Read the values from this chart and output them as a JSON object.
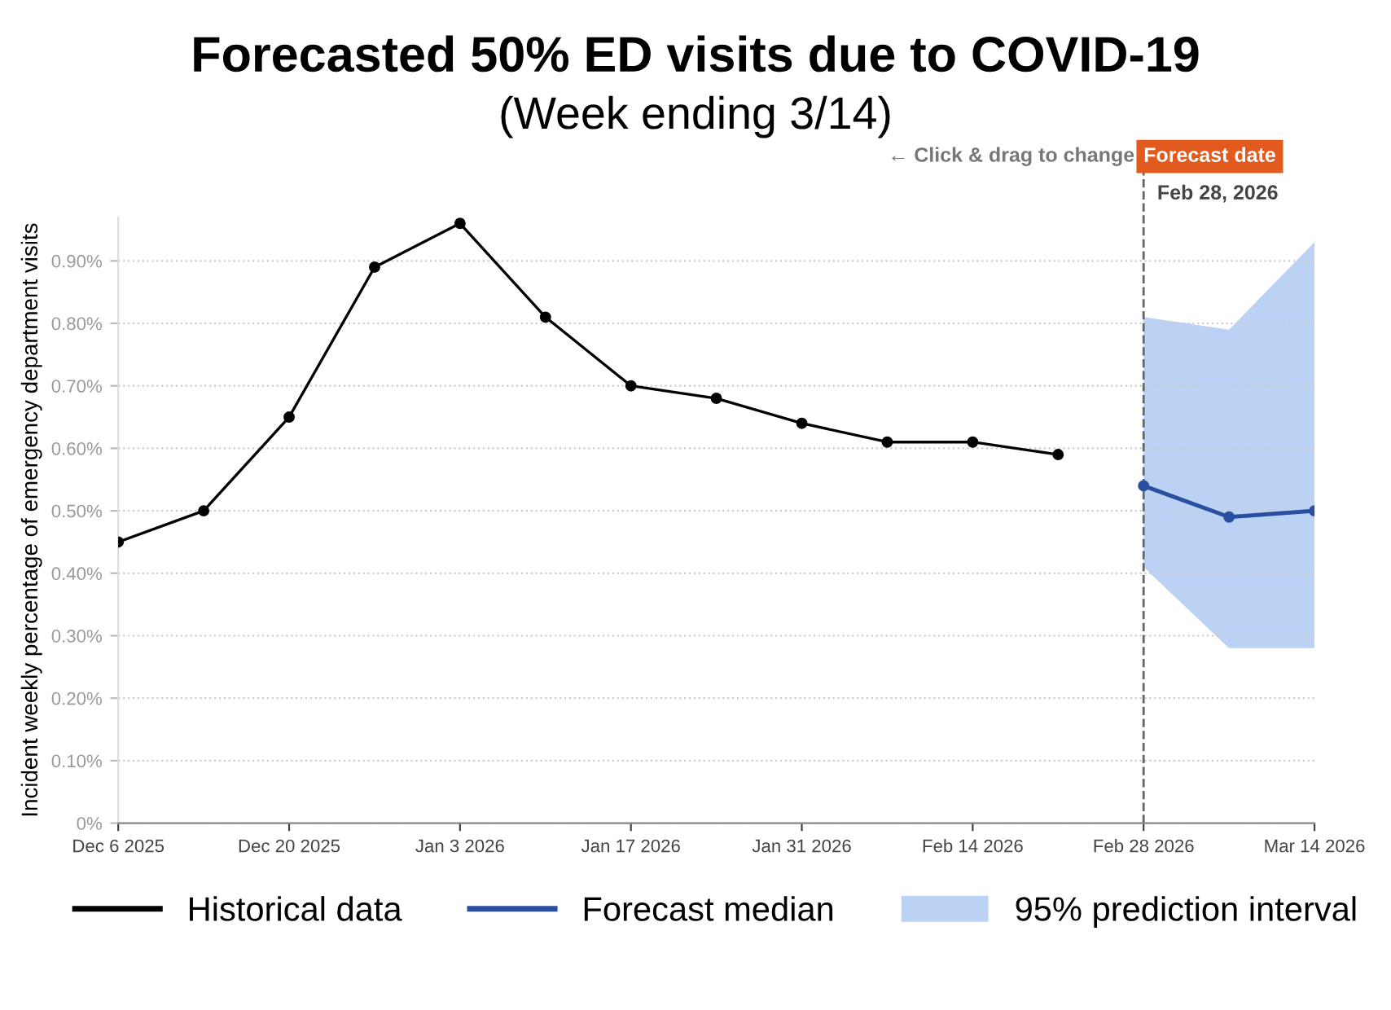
{
  "chart_data": {
    "type": "line",
    "title": "Forecasted 50% ED visits due to COVID-19",
    "subtitle": "(Week ending 3/14)",
    "ylabel": "Incident weekly percentage of emergency department visits",
    "series": [
      {
        "name": "Historical data",
        "color": "#000000",
        "x": [
          "2025-12-06",
          "2025-12-13",
          "2025-12-20",
          "2025-12-27",
          "2026-01-03",
          "2026-01-10",
          "2026-01-17",
          "2026-01-24",
          "2026-01-31",
          "2026-02-07",
          "2026-02-14",
          "2026-02-21"
        ],
        "values": [
          0.45,
          0.5,
          0.65,
          0.89,
          0.96,
          0.81,
          0.7,
          0.68,
          0.64,
          0.61,
          0.61,
          0.59
        ]
      },
      {
        "name": "Forecast median",
        "color": "#2a4fa0",
        "x": [
          "2026-02-28",
          "2026-03-07",
          "2026-03-14"
        ],
        "values": [
          0.54,
          0.49,
          0.5
        ]
      },
      {
        "name": "95% prediction interval",
        "type": "area",
        "color": "#bcd2f4",
        "x": [
          "2026-02-28",
          "2026-03-07",
          "2026-03-14"
        ],
        "values": [
          null,
          null,
          null
        ],
        "lower": [
          0.41,
          0.28,
          0.28
        ],
        "upper": [
          0.81,
          0.79,
          0.93
        ]
      }
    ],
    "xlim": [
      "2025-12-06",
      "2026-03-14"
    ],
    "xticks": [
      {
        "value": "2025-12-06",
        "label": "Dec 6 2025"
      },
      {
        "value": "2025-12-20",
        "label": "Dec 20 2025"
      },
      {
        "value": "2026-01-03",
        "label": "Jan 3 2026"
      },
      {
        "value": "2026-01-17",
        "label": "Jan 17 2026"
      },
      {
        "value": "2026-01-31",
        "label": "Jan 31 2026"
      },
      {
        "value": "2026-02-14",
        "label": "Feb 14 2026"
      },
      {
        "value": "2026-02-28",
        "label": "Feb 28 2026"
      },
      {
        "value": "2026-03-14",
        "label": "Mar 14 2026"
      }
    ],
    "ylim": [
      0,
      0.97
    ],
    "yticks": [
      {
        "value": 0,
        "label": "0%"
      },
      {
        "value": 0.1,
        "label": "0.10%"
      },
      {
        "value": 0.2,
        "label": "0.20%"
      },
      {
        "value": 0.3,
        "label": "0.30%"
      },
      {
        "value": 0.4,
        "label": "0.40%"
      },
      {
        "value": 0.5,
        "label": "0.50%"
      },
      {
        "value": 0.6,
        "label": "0.60%"
      },
      {
        "value": 0.7,
        "label": "0.70%"
      },
      {
        "value": 0.8,
        "label": "0.80%"
      },
      {
        "value": 0.9,
        "label": "0.90%"
      }
    ],
    "ref_lines": [
      {
        "axis": "x",
        "value": "2026-02-28",
        "label": "Forecast date",
        "color": "#666666",
        "line_style": "dashed"
      }
    ],
    "annotations": [
      {
        "text": "Feb 28, 2026",
        "x": "2026-02-28",
        "y": 0.97
      },
      "← Click & drag to change"
    ],
    "grid": "y",
    "marker": "circle",
    "line_style": "solid",
    "legend": "bottom"
  }
}
